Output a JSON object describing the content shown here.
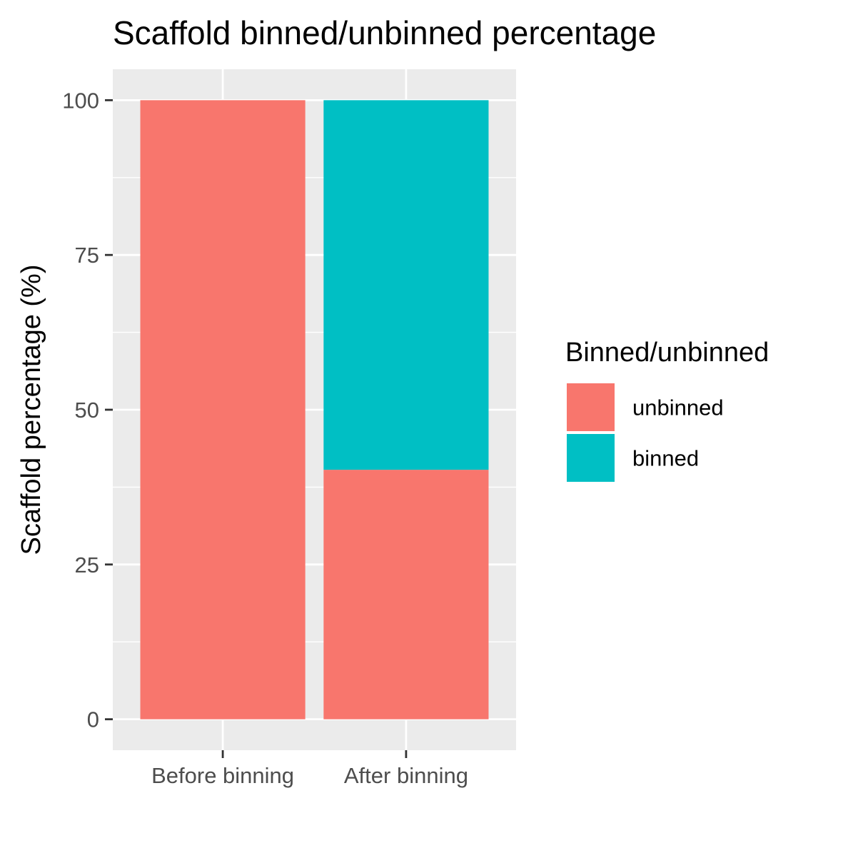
{
  "chart_data": {
    "type": "bar",
    "stacked": true,
    "title": "Scaffold binned/unbinned percentage",
    "xlabel": "",
    "ylabel": "Scaffold percentage (%)",
    "categories": [
      "Before binning",
      "After binning"
    ],
    "series": [
      {
        "name": "unbinned",
        "color": "#F8766D",
        "values": [
          100,
          40.3
        ]
      },
      {
        "name": "binned",
        "color": "#00BFC4",
        "values": [
          0,
          59.7
        ]
      }
    ],
    "ylim": [
      -5,
      105
    ],
    "yticks": [
      0,
      25,
      50,
      75,
      100
    ],
    "ytick_labels": [
      "0",
      "25",
      "50",
      "75",
      "100"
    ],
    "grid": true,
    "panel_background": "#EBEBEB",
    "legend": {
      "title": "Binned/unbinned",
      "position": "right",
      "entries": [
        "unbinned",
        "binned"
      ]
    }
  }
}
